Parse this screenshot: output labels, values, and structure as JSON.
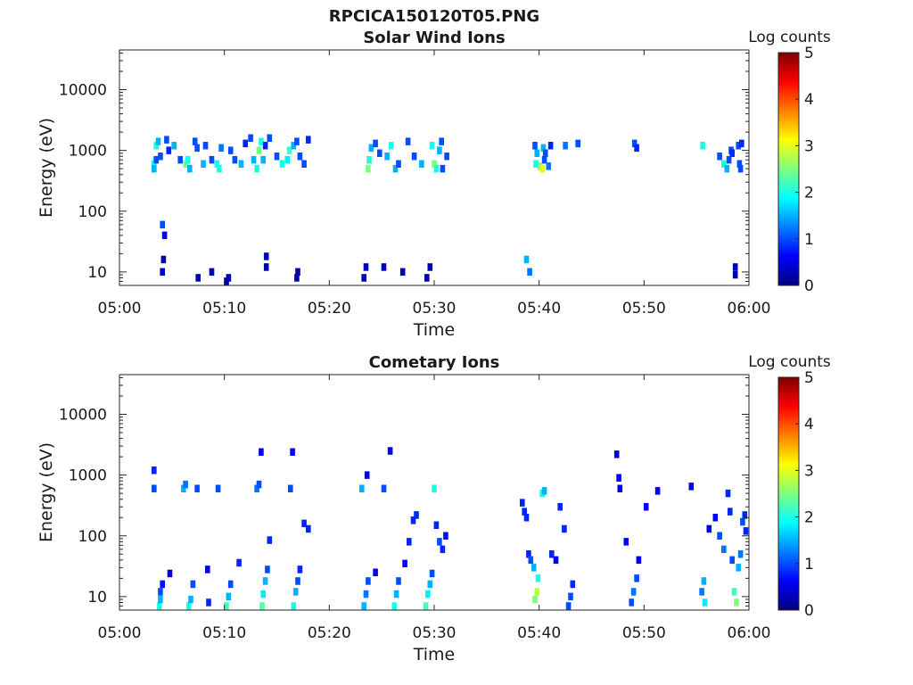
{
  "figure": {
    "title": "RPCICA150120T05.PNG"
  },
  "colormap": [
    "#00007f",
    "#0000ff",
    "#007fff",
    "#00ffff",
    "#7fff7f",
    "#ffff00",
    "#ff7f00",
    "#ff0000",
    "#7f0000"
  ],
  "chart_data": [
    {
      "type": "heatmap",
      "title": "Solar Wind Ions",
      "xlabel": "Time",
      "ylabel": "Energy (eV)",
      "xlim": [
        "05:00",
        "06:00"
      ],
      "ylim": [
        6,
        45000
      ],
      "yscale": "log",
      "xticks": [
        "05:00",
        "05:10",
        "05:20",
        "05:30",
        "05:40",
        "05:50",
        "06:00"
      ],
      "yticks": [
        10,
        100,
        1000,
        10000
      ],
      "ytick_labels": [
        "10",
        "100",
        "1000",
        "10000"
      ],
      "colorbar": {
        "label": "Log counts",
        "min": 0,
        "max": 5,
        "ticks": [
          "0",
          "1",
          "2",
          "3",
          "4",
          "5"
        ]
      },
      "cells": [
        [
          3.3,
          600,
          2.0
        ],
        [
          3.3,
          500,
          1.5
        ],
        [
          3.5,
          700,
          1.0
        ],
        [
          3.5,
          1200,
          2.0
        ],
        [
          3.7,
          1400,
          1.5
        ],
        [
          3.9,
          800,
          1.0
        ],
        [
          4.1,
          10,
          0.3
        ],
        [
          4.2,
          16,
          0.2
        ],
        [
          4.1,
          60,
          1.0
        ],
        [
          4.3,
          40,
          0.5
        ],
        [
          4.5,
          1500,
          1.0
        ],
        [
          4.7,
          1000,
          0.8
        ],
        [
          5.2,
          1200,
          1.5
        ],
        [
          5.8,
          700,
          1.0
        ],
        [
          6.3,
          600,
          2.5
        ],
        [
          6.5,
          700,
          2.0
        ],
        [
          6.7,
          500,
          1.5
        ],
        [
          7.2,
          1400,
          1.0
        ],
        [
          7.5,
          8,
          0.2
        ],
        [
          7.4,
          1100,
          1.0
        ],
        [
          8.0,
          600,
          1.5
        ],
        [
          8.2,
          1200,
          1.0
        ],
        [
          8.8,
          700,
          1.0
        ],
        [
          9.3,
          600,
          2.0
        ],
        [
          9.5,
          500,
          2.0
        ],
        [
          9.7,
          1100,
          1.2
        ],
        [
          10.2,
          7,
          0.2
        ],
        [
          10.4,
          8,
          0.2
        ],
        [
          10.6,
          1000,
          1.0
        ],
        [
          11.0,
          700,
          1.0
        ],
        [
          11.6,
          600,
          1.5
        ],
        [
          12.0,
          1300,
          0.8
        ],
        [
          12.5,
          1600,
          1.0
        ],
        [
          12.8,
          700,
          1.5
        ],
        [
          13.1,
          500,
          2.0
        ],
        [
          13.3,
          1000,
          2.5
        ],
        [
          13.5,
          1400,
          2.0
        ],
        [
          13.7,
          700,
          1.5
        ],
        [
          13.9,
          1200,
          0.8
        ],
        [
          14.0,
          18,
          0.3
        ],
        [
          14.0,
          12,
          0.2
        ],
        [
          14.3,
          1600,
          1.0
        ],
        [
          15.0,
          800,
          1.0
        ],
        [
          15.5,
          600,
          2.0
        ],
        [
          16.0,
          700,
          1.8
        ],
        [
          16.2,
          1000,
          2.2
        ],
        [
          16.6,
          1200,
          1.5
        ],
        [
          16.9,
          1400,
          1.0
        ],
        [
          17.0,
          10,
          0.2
        ],
        [
          17.2,
          800,
          1.0
        ],
        [
          17.6,
          600,
          1.0
        ],
        [
          18.0,
          1500,
          0.8
        ],
        [
          23.3,
          8,
          0.2
        ],
        [
          23.5,
          12,
          0.3
        ],
        [
          23.7,
          500,
          2.5
        ],
        [
          23.8,
          700,
          2.0
        ],
        [
          24.0,
          1100,
          1.5
        ],
        [
          24.4,
          1300,
          1.0
        ],
        [
          24.8,
          900,
          1.0
        ],
        [
          25.2,
          12,
          0.3
        ],
        [
          25.5,
          800,
          1.5
        ],
        [
          25.9,
          1200,
          2.0
        ],
        [
          26.3,
          500,
          1.5
        ],
        [
          26.6,
          600,
          1.0
        ],
        [
          27.0,
          10,
          0.2
        ],
        [
          27.5,
          1400,
          1.0
        ],
        [
          28.1,
          800,
          1.0
        ],
        [
          28.8,
          600,
          1.5
        ],
        [
          29.3,
          8,
          0.2
        ],
        [
          29.6,
          12,
          0.2
        ],
        [
          29.8,
          1200,
          2.0
        ],
        [
          30.0,
          600,
          2.5
        ],
        [
          30.2,
          500,
          2.0
        ],
        [
          30.5,
          1000,
          1.5
        ],
        [
          30.7,
          1400,
          1.0
        ],
        [
          30.8,
          500,
          1.0
        ],
        [
          31.2,
          800,
          1.0
        ],
        [
          38.8,
          16,
          1.5
        ],
        [
          39.1,
          10,
          1.2
        ],
        [
          39.6,
          1200,
          1.0
        ],
        [
          39.7,
          600,
          2.0
        ],
        [
          39.8,
          900,
          1.5
        ],
        [
          40.1,
          550,
          2.5
        ],
        [
          40.3,
          500,
          3.0
        ],
        [
          40.4,
          1100,
          1.5
        ],
        [
          40.5,
          700,
          1.0
        ],
        [
          40.6,
          900,
          1.0
        ],
        [
          40.9,
          550,
          1.2
        ],
        [
          41.1,
          1200,
          0.8
        ],
        [
          42.5,
          1200,
          1.2
        ],
        [
          43.7,
          1300,
          1.0
        ],
        [
          49.1,
          1300,
          1.0
        ],
        [
          49.3,
          1100,
          0.8
        ],
        [
          55.6,
          1200,
          2.0
        ],
        [
          57.2,
          800,
          1.0
        ],
        [
          57.6,
          600,
          2.0
        ],
        [
          57.9,
          500,
          1.5
        ],
        [
          58.1,
          700,
          1.0
        ],
        [
          58.3,
          1000,
          1.0
        ],
        [
          58.4,
          900,
          0.8
        ],
        [
          58.7,
          12,
          0.3
        ],
        [
          58.7,
          9,
          0.2
        ],
        [
          59.0,
          1200,
          1.0
        ],
        [
          59.1,
          600,
          1.0
        ],
        [
          59.2,
          500,
          1.0
        ],
        [
          59.3,
          1300,
          0.8
        ],
        [
          8.8,
          10,
          0.3
        ],
        [
          16.9,
          8,
          0.2
        ]
      ]
    },
    {
      "type": "heatmap",
      "title": "Cometary Ions",
      "xlabel": "Time",
      "ylabel": "Energy (eV)",
      "xlim": [
        "05:00",
        "06:00"
      ],
      "ylim": [
        6,
        45000
      ],
      "yscale": "log",
      "xticks": [
        "05:00",
        "05:10",
        "05:20",
        "05:30",
        "05:40",
        "05:50",
        "06:00"
      ],
      "yticks": [
        10,
        100,
        1000,
        10000
      ],
      "ytick_labels": [
        "10",
        "100",
        "1000",
        "10000"
      ],
      "colorbar": {
        "label": "Log counts",
        "min": 0,
        "max": 5,
        "ticks": [
          "0",
          "1",
          "2",
          "3",
          "4",
          "5"
        ]
      },
      "cells": [
        [
          3.3,
          1200,
          0.8
        ],
        [
          3.3,
          600,
          1.0
        ],
        [
          3.8,
          7,
          2.0
        ],
        [
          3.9,
          9,
          1.5
        ],
        [
          3.9,
          12,
          1.0
        ],
        [
          4.1,
          16,
          0.7
        ],
        [
          4.8,
          24,
          0.4
        ],
        [
          6.1,
          600,
          1.5
        ],
        [
          6.3,
          700,
          1.2
        ],
        [
          6.6,
          7,
          2.0
        ],
        [
          6.8,
          9,
          1.5
        ],
        [
          7.0,
          16,
          1.0
        ],
        [
          7.4,
          600,
          1.0
        ],
        [
          8.5,
          8,
          0.8
        ],
        [
          8.4,
          28,
          0.5
        ],
        [
          9.4,
          600,
          1.0
        ],
        [
          10.2,
          7,
          2.2
        ],
        [
          10.4,
          10,
          1.5
        ],
        [
          10.6,
          16,
          1.0
        ],
        [
          11.4,
          36,
          0.8
        ],
        [
          13.1,
          600,
          1.2
        ],
        [
          13.3,
          700,
          1.0
        ],
        [
          13.5,
          2400,
          0.6
        ],
        [
          13.6,
          7,
          2.3
        ],
        [
          13.7,
          11,
          1.8
        ],
        [
          13.9,
          18,
          1.5
        ],
        [
          14.1,
          28,
          1.0
        ],
        [
          14.3,
          85,
          0.8
        ],
        [
          16.3,
          600,
          1.0
        ],
        [
          16.5,
          2400,
          0.6
        ],
        [
          16.6,
          7,
          2.0
        ],
        [
          16.8,
          12,
          1.5
        ],
        [
          17.0,
          18,
          1.0
        ],
        [
          17.2,
          28,
          0.8
        ],
        [
          17.6,
          160,
          0.8
        ],
        [
          18.0,
          130,
          0.8
        ],
        [
          23.1,
          600,
          1.5
        ],
        [
          23.3,
          7,
          1.5
        ],
        [
          23.5,
          11,
          1.2
        ],
        [
          23.7,
          18,
          1.0
        ],
        [
          23.6,
          1000,
          0.6
        ],
        [
          24.4,
          25,
          0.6
        ],
        [
          25.2,
          600,
          1.0
        ],
        [
          25.8,
          2500,
          0.6
        ],
        [
          26.2,
          7,
          2.0
        ],
        [
          26.4,
          11,
          1.5
        ],
        [
          26.6,
          18,
          1.0
        ],
        [
          27.2,
          35,
          0.6
        ],
        [
          27.6,
          80,
          0.8
        ],
        [
          28.0,
          180,
          0.8
        ],
        [
          28.3,
          220,
          0.8
        ],
        [
          29.2,
          7,
          2.2
        ],
        [
          29.4,
          11,
          1.8
        ],
        [
          29.6,
          16,
          1.5
        ],
        [
          29.8,
          24,
          1.0
        ],
        [
          30.0,
          600,
          2.0
        ],
        [
          30.2,
          150,
          0.8
        ],
        [
          30.5,
          80,
          1.0
        ],
        [
          30.8,
          60,
          0.8
        ],
        [
          31.1,
          100,
          0.7
        ],
        [
          38.4,
          350,
          0.8
        ],
        [
          38.6,
          250,
          0.8
        ],
        [
          38.8,
          200,
          0.8
        ],
        [
          39.0,
          50,
          0.8
        ],
        [
          39.2,
          40,
          1.0
        ],
        [
          39.5,
          30,
          1.5
        ],
        [
          39.6,
          9,
          2.5
        ],
        [
          39.8,
          12,
          2.8
        ],
        [
          39.9,
          20,
          2.0
        ],
        [
          40.3,
          500,
          2.0
        ],
        [
          40.5,
          550,
          1.5
        ],
        [
          41.2,
          50,
          0.8
        ],
        [
          41.6,
          40,
          0.6
        ],
        [
          42.0,
          300,
          0.8
        ],
        [
          42.4,
          130,
          0.8
        ],
        [
          42.8,
          7,
          1.0
        ],
        [
          43.0,
          10,
          1.0
        ],
        [
          43.2,
          16,
          0.8
        ],
        [
          47.4,
          2200,
          0.5
        ],
        [
          47.6,
          900,
          0.6
        ],
        [
          47.7,
          600,
          0.6
        ],
        [
          48.3,
          80,
          0.6
        ],
        [
          48.8,
          8,
          1.0
        ],
        [
          49.0,
          12,
          1.2
        ],
        [
          49.3,
          20,
          1.0
        ],
        [
          49.5,
          40,
          0.6
        ],
        [
          50.2,
          300,
          0.6
        ],
        [
          51.3,
          550,
          0.6
        ],
        [
          54.5,
          650,
          0.6
        ],
        [
          55.5,
          12,
          1.2
        ],
        [
          55.7,
          18,
          1.5
        ],
        [
          55.8,
          8,
          1.8
        ],
        [
          56.2,
          130,
          0.6
        ],
        [
          56.8,
          200,
          0.6
        ],
        [
          57.2,
          100,
          1.0
        ],
        [
          57.6,
          60,
          1.2
        ],
        [
          58.0,
          500,
          0.8
        ],
        [
          58.2,
          250,
          0.8
        ],
        [
          58.4,
          40,
          1.0
        ],
        [
          58.6,
          12,
          2.2
        ],
        [
          58.8,
          8,
          2.5
        ],
        [
          59.0,
          30,
          1.5
        ],
        [
          59.2,
          50,
          1.2
        ],
        [
          59.4,
          170,
          1.0
        ],
        [
          59.6,
          220,
          0.8
        ],
        [
          59.7,
          120,
          0.8
        ]
      ]
    }
  ]
}
